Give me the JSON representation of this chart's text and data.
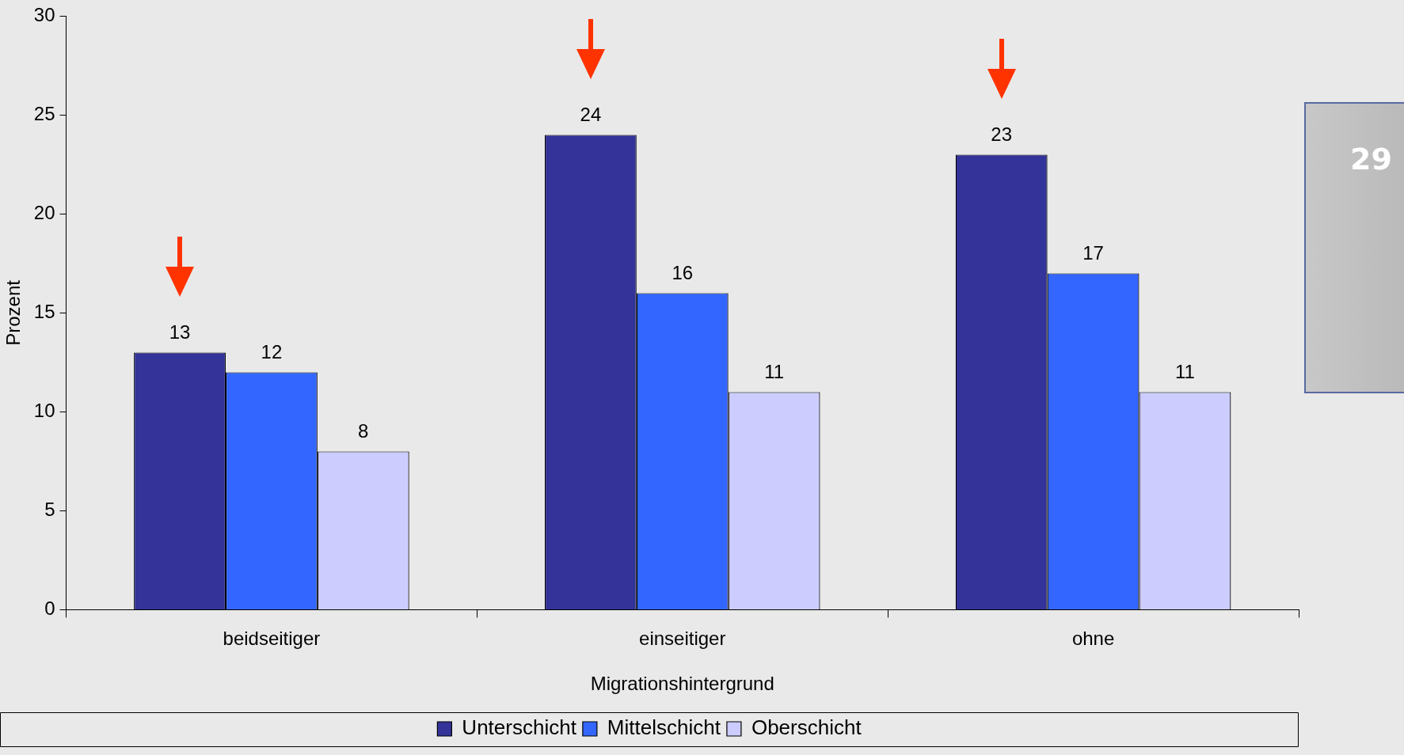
{
  "chart_data": {
    "type": "bar",
    "categories": [
      "beidseitiger",
      "einseitiger",
      "ohne"
    ],
    "series": [
      {
        "name": "Unterschicht",
        "color": "#333399",
        "values": [
          13,
          24,
          23
        ]
      },
      {
        "name": "Mittelschicht",
        "color": "#3366ff",
        "values": [
          12,
          16,
          17
        ]
      },
      {
        "name": "Oberschicht",
        "color": "#ccccff",
        "values": [
          8,
          11,
          11
        ]
      }
    ],
    "xlabel": "Migrationshintergrund",
    "ylabel": "Prozent",
    "ylim": [
      0,
      30
    ],
    "yticks": [
      0,
      5,
      10,
      15,
      20,
      25,
      30
    ],
    "grid": false,
    "legend": "bottom",
    "data_labels": true,
    "annotations": [
      "29"
    ]
  }
}
